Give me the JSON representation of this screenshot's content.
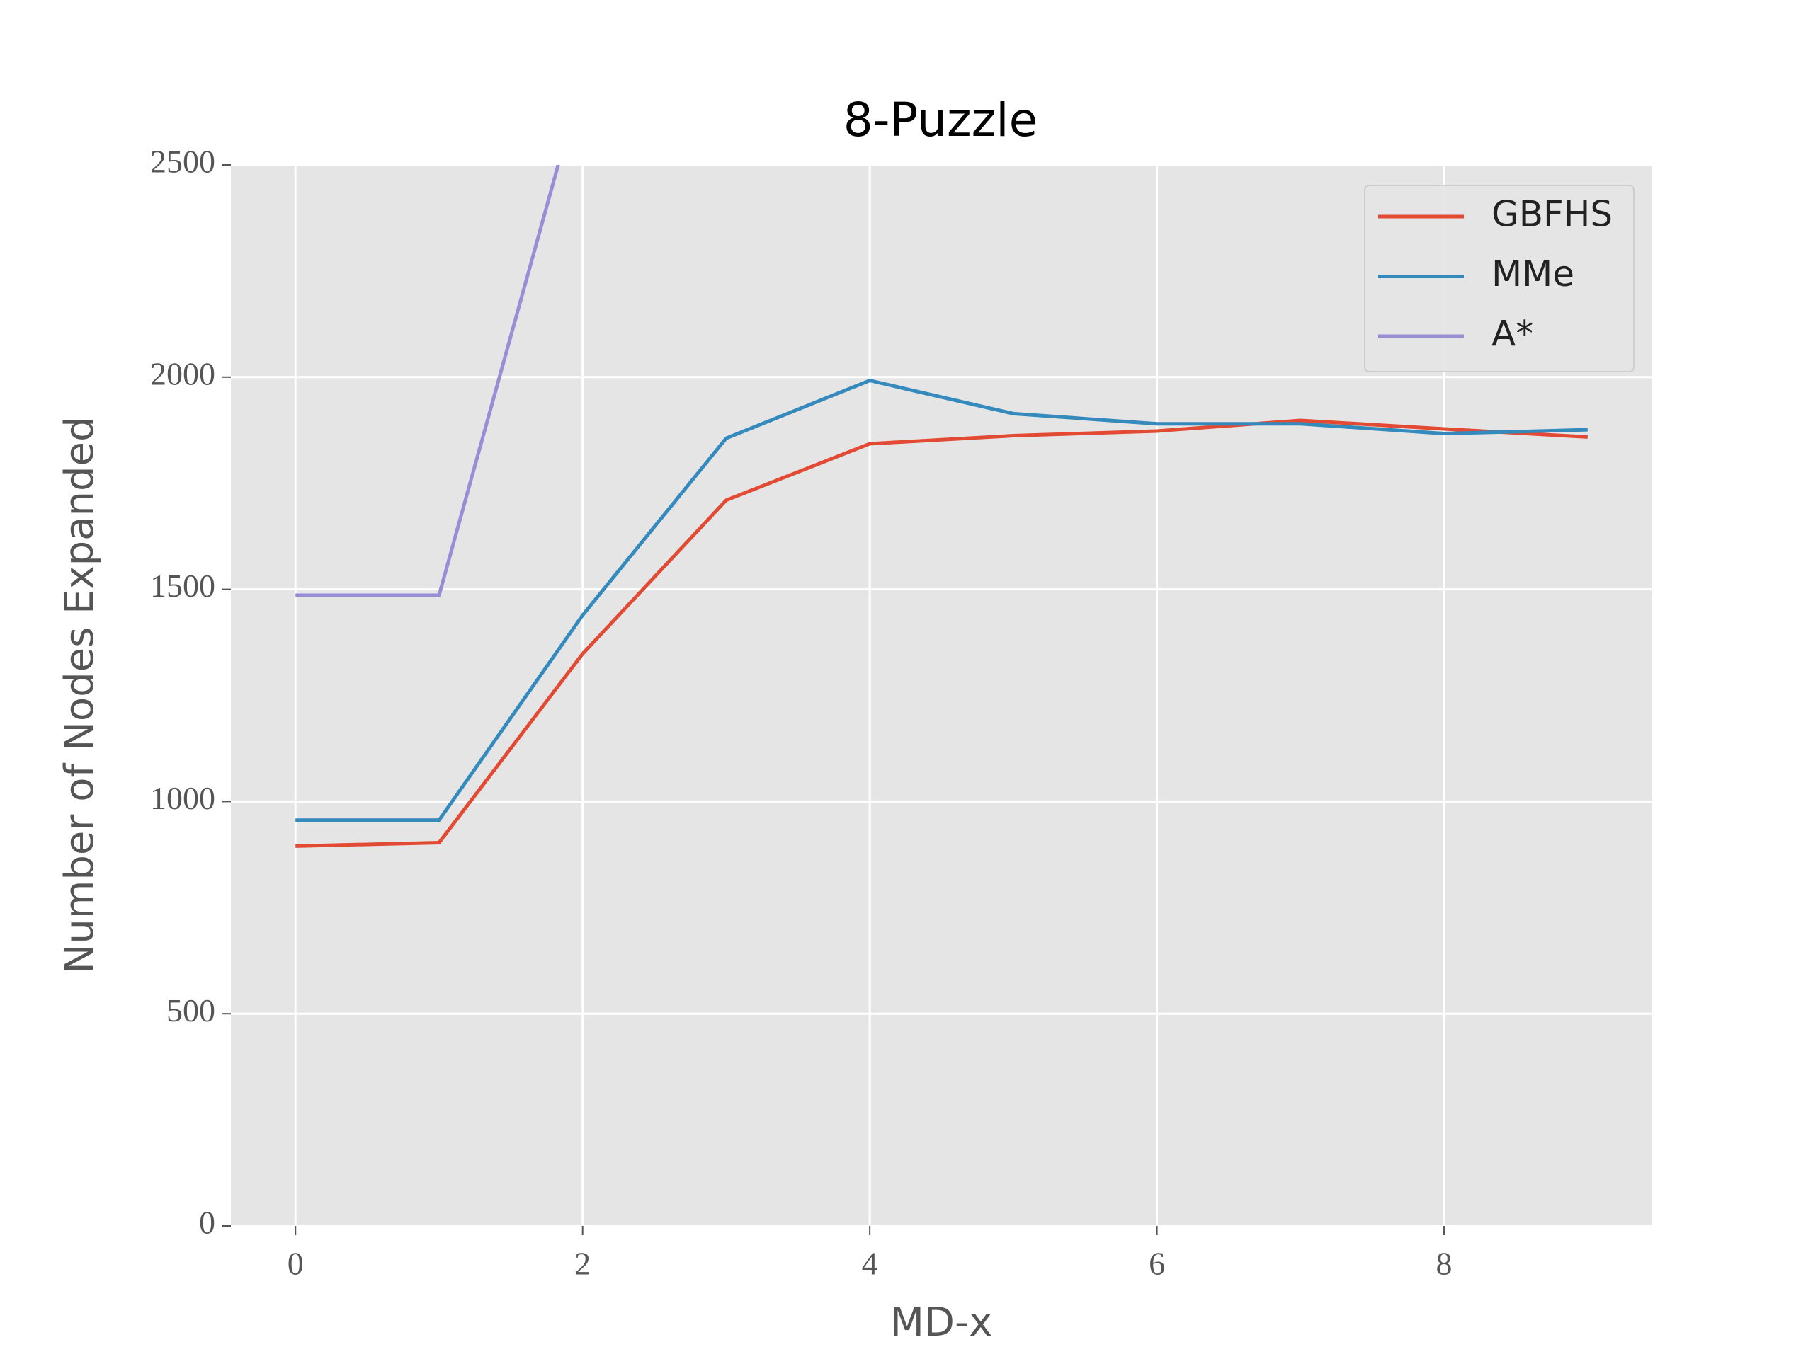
{
  "chart_data": {
    "type": "line",
    "title": "8-Puzzle",
    "xlabel": "MD-x",
    "ylabel": "Number of Nodes Expanded",
    "x": [
      0,
      1,
      2,
      3,
      4,
      5,
      6,
      7,
      8,
      9
    ],
    "series": [
      {
        "name": "GBFHS",
        "color": "#E24A33",
        "values": [
          895,
          903,
          1348,
          1710,
          1843,
          1862,
          1873,
          1898,
          1878,
          1859
        ]
      },
      {
        "name": "MMe",
        "color": "#348ABD",
        "values": [
          956,
          956,
          1439,
          1856,
          1992,
          1914,
          1890,
          1890,
          1867,
          1876
        ]
      },
      {
        "name": "A*",
        "color": "#988ED5",
        "values": [
          1486,
          1486,
          2708,
          null,
          null,
          null,
          null,
          null,
          null,
          null
        ]
      }
    ],
    "xlim": [
      -0.45,
      9.45
    ],
    "ylim": [
      0,
      2500
    ],
    "xticks": [
      0,
      2,
      4,
      6,
      8
    ],
    "yticks": [
      0,
      500,
      1000,
      1500,
      2000,
      2500
    ],
    "grid": true,
    "legend": "upper right"
  }
}
